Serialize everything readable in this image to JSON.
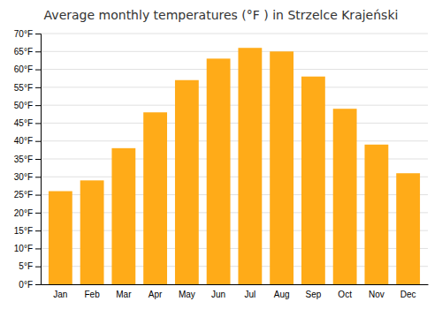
{
  "chart_data": {
    "type": "bar",
    "title": "Average monthly temperatures (°F ) in Strzelce Krajeński",
    "categories": [
      "Jan",
      "Feb",
      "Mar",
      "Apr",
      "May",
      "Jun",
      "Jul",
      "Aug",
      "Sep",
      "Oct",
      "Nov",
      "Dec"
    ],
    "values": [
      26,
      29,
      38,
      48,
      57,
      63,
      66,
      65,
      58,
      49,
      39,
      31
    ],
    "color": "#FFAB18",
    "ylim": [
      0,
      70
    ],
    "yticks": [
      {
        "value": 0,
        "label": "0°F"
      },
      {
        "value": 5,
        "label": "5°F"
      },
      {
        "value": 10,
        "label": "10°F"
      },
      {
        "value": 15,
        "label": "15°F"
      },
      {
        "value": 20,
        "label": "20°F"
      },
      {
        "value": 25,
        "label": "25°F"
      },
      {
        "value": 30,
        "label": "30°F"
      },
      {
        "value": 35,
        "label": "35°F"
      },
      {
        "value": 40,
        "label": "40°F"
      },
      {
        "value": 45,
        "label": "45°F"
      },
      {
        "value": 50,
        "label": "50°F"
      },
      {
        "value": 55,
        "label": "55°F"
      },
      {
        "value": 60,
        "label": "60°F"
      },
      {
        "value": 65,
        "label": "65°F"
      },
      {
        "value": 70,
        "label": "70°F"
      }
    ],
    "grid": true
  }
}
